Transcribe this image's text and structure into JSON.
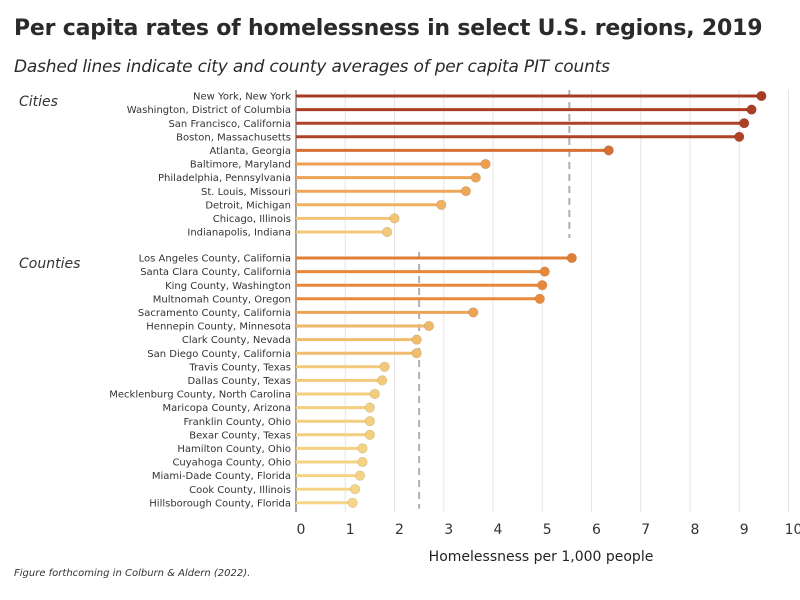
{
  "chart_data": {
    "type": "lollipop",
    "title": "Per capita rates of homelessness in select U.S. regions, 2019",
    "subtitle": "Dashed lines indicate city and county averages of per capita PIT counts",
    "xlabel": "Homelessness per 1,000 people",
    "caption": "Figure forthcoming in Colburn & Aldern (2022).",
    "xlim": [
      0,
      10
    ],
    "xticks": [
      0,
      1,
      2,
      3,
      4,
      5,
      6,
      7,
      8,
      9,
      10
    ],
    "grid": "vertical",
    "groups": [
      {
        "name": "Cities",
        "average": 5.55,
        "categories": [
          "New York, New York",
          "Washington, District of Columbia",
          "San Francisco, California",
          "Boston, Massachusetts",
          "Atlanta, Georgia",
          "Baltimore, Maryland",
          "Philadelphia, Pennsylvania",
          "St. Louis, Missouri",
          "Detroit, Michigan",
          "Chicago, Illinois",
          "Indianapolis, Indiana"
        ],
        "values": [
          9.45,
          9.25,
          9.1,
          9.0,
          6.35,
          3.85,
          3.65,
          3.45,
          2.95,
          2.0,
          1.85
        ]
      },
      {
        "name": "Counties",
        "average": 2.5,
        "categories": [
          "Los Angeles County, California",
          "Santa Clara County, California",
          "King County, Washington",
          "Multnomah County, Oregon",
          "Sacramento County, California",
          "Hennepin County, Minnesota",
          "Clark County, Nevada",
          "San Diego County, California",
          "Travis County, Texas",
          "Dallas County, Texas",
          "Mecklenburg County, North Carolina",
          "Maricopa County, Arizona",
          "Franklin County, Ohio",
          "Bexar County, Texas",
          "Hamilton County, Ohio",
          "Cuyahoga County, Ohio",
          "Miami-Dade County, Florida",
          "Cook County, Illinois",
          "Hillsborough County, Florida"
        ],
        "values": [
          5.6,
          5.05,
          5.0,
          4.95,
          3.6,
          2.7,
          2.45,
          2.45,
          1.8,
          1.75,
          1.6,
          1.5,
          1.5,
          1.5,
          1.35,
          1.35,
          1.3,
          1.2,
          1.15
        ]
      }
    ],
    "colors": {
      "low": "#f5d98a",
      "mid": "#e8883a",
      "high": "#a83a25",
      "average_line": "#b0b0b0",
      "grid": "#e6e6e6",
      "axis": "#444444"
    }
  }
}
